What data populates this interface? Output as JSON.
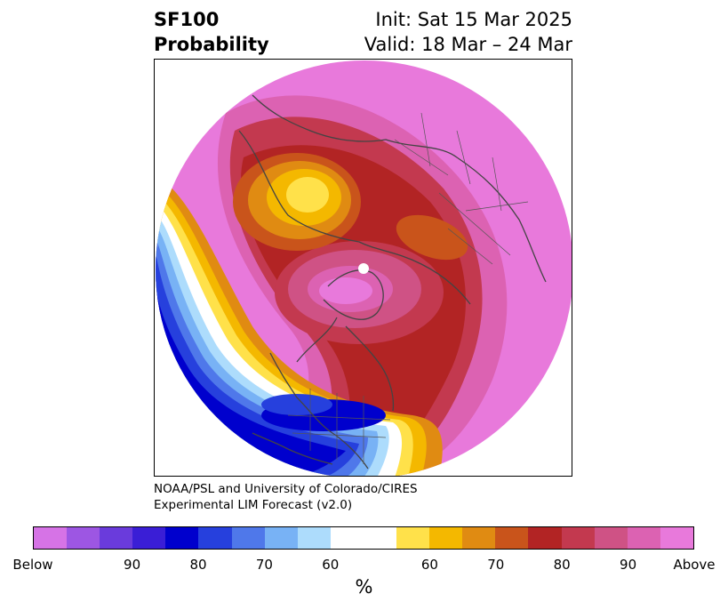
{
  "title": {
    "left_line1": "SF100",
    "left_line2": "Probability",
    "right_line1": "Init: Sat 15 Mar 2025",
    "right_line2": "Valid: 18 Mar – 24 Mar"
  },
  "credit": {
    "line1": "NOAA/PSL and University of Colorado/CIRES",
    "line2": "Experimental LIM Forecast (v2.0)"
  },
  "colorbar": {
    "unit": "%",
    "below_colors": [
      "#d673e6",
      "#9d56e3",
      "#6a3bdc",
      "#3a1ed6",
      "#0000cd",
      "#2640dd",
      "#4f78ea",
      "#78b2f5",
      "#addcfc"
    ],
    "neutral_color": "#ffffff",
    "above_colors": [
      "#ffe14a",
      "#f4b800",
      "#e08b12",
      "#c9541b",
      "#b22424",
      "#c3394f",
      "#cf5285",
      "#dc62b2",
      "#e879db"
    ],
    "tick_labels": [
      "Below",
      "90",
      "80",
      "70",
      "60",
      "60",
      "70",
      "80",
      "90",
      "Above"
    ]
  },
  "map": {
    "projection": "polar stereographic (north pole)",
    "region": "Northern Hemisphere"
  }
}
